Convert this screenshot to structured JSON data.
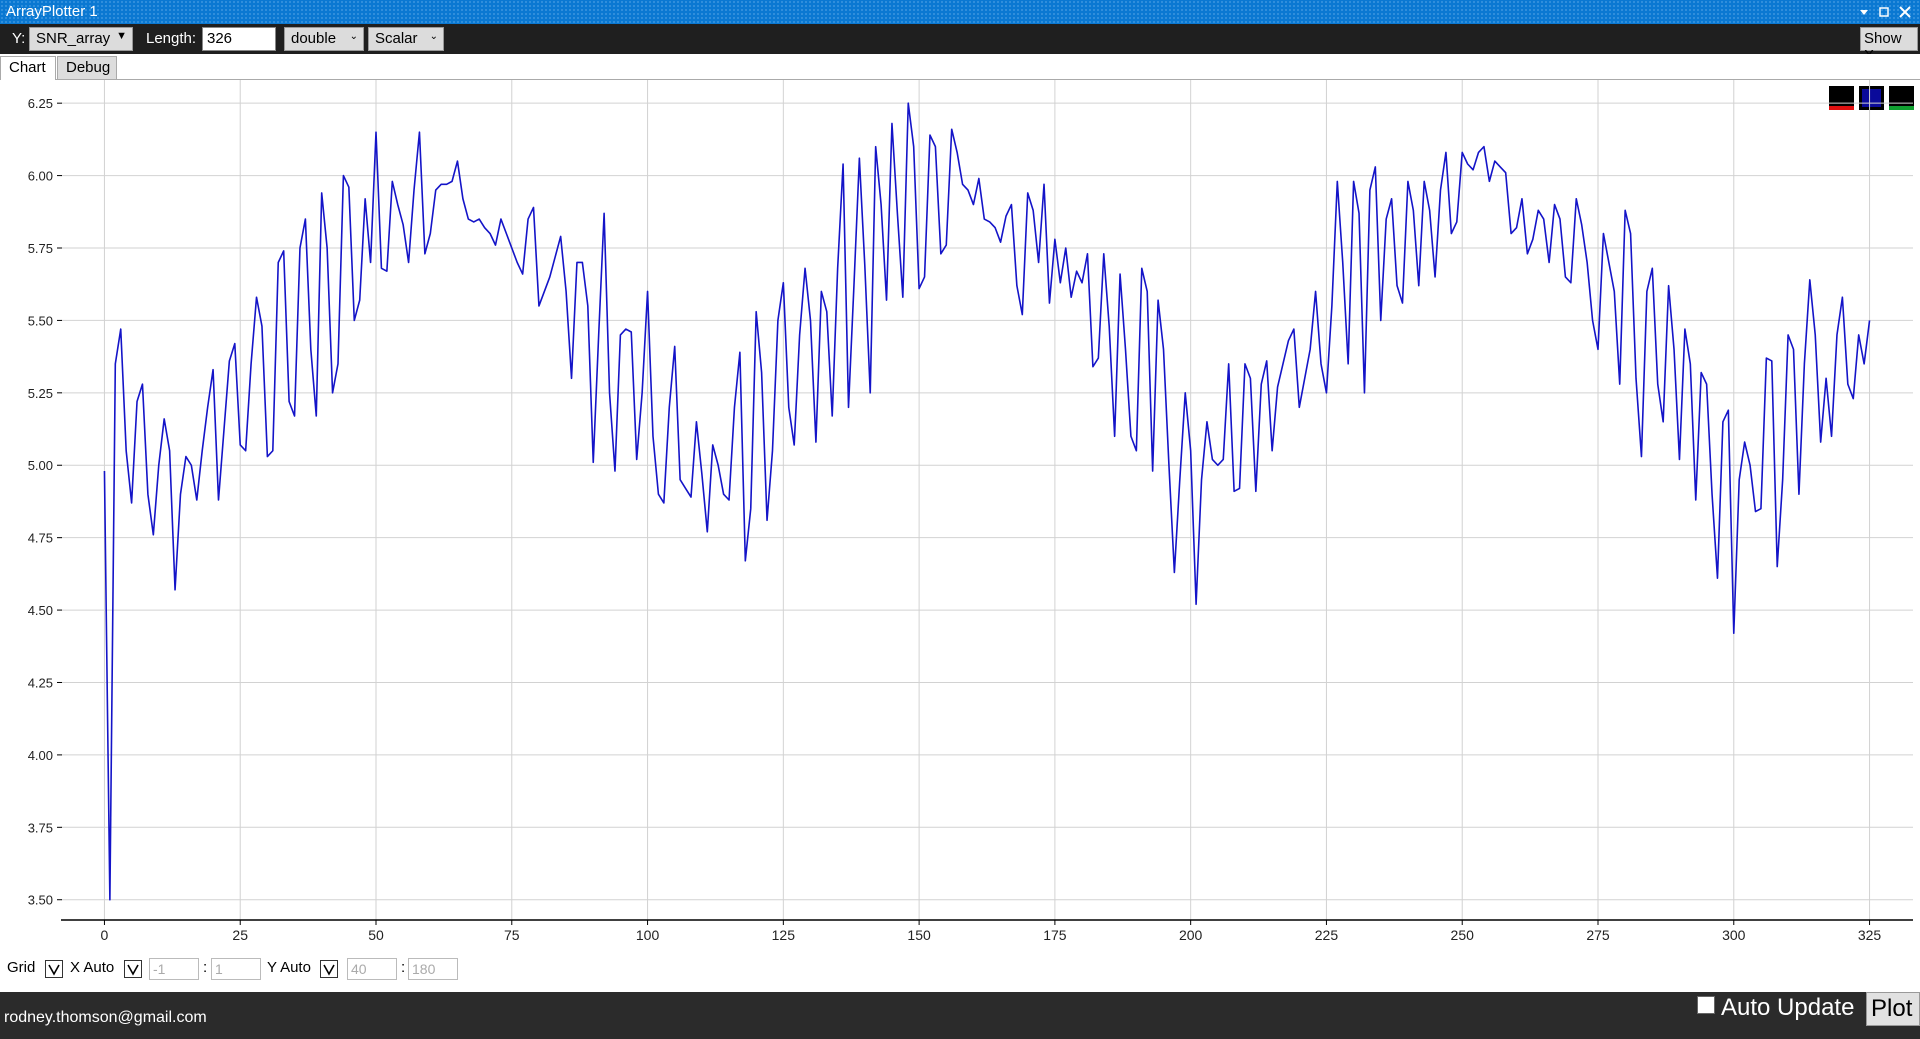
{
  "window": {
    "title": "ArrayPlotter 1",
    "toolbar": {
      "y_label": "Y:",
      "y_select": "SNR_array",
      "length_label": "Length:",
      "length_value": "326",
      "type_select": "double",
      "mode_select": "Scalar",
      "show_x": "Show X"
    },
    "tabs": [
      "Chart",
      "Debug"
    ],
    "controls": {
      "grid": "Grid",
      "x_auto": "X Auto",
      "x_min": "-1",
      "x_max": "1",
      "y_auto": "Y Auto",
      "y_min": "40",
      "y_max": "180",
      "separator": ":"
    },
    "footer": {
      "email": "rodney.thomson@gmail.com",
      "auto_update": "Auto Update",
      "plot": "Plot"
    }
  },
  "chart_data": {
    "type": "line",
    "grid": true,
    "xlim": [
      -8,
      333
    ],
    "ylim": [
      3.43,
      6.33
    ],
    "xticks": [
      0,
      25,
      50,
      75,
      100,
      125,
      150,
      175,
      200,
      225,
      250,
      275,
      300,
      325
    ],
    "yticks": [
      {
        "value": 3.5,
        "label": "3.50"
      },
      3.75,
      {
        "value": 4,
        "label": "4.00"
      },
      4.25,
      {
        "value": 4.5,
        "label": "4.50"
      },
      4.75,
      {
        "value": 5,
        "label": "5.00"
      },
      5.25,
      {
        "value": 5.5,
        "label": "5.50"
      },
      5.75,
      {
        "value": 6,
        "label": "6.00"
      },
      6.25
    ],
    "x": [
      0,
      1,
      2,
      3,
      4,
      5,
      6,
      7,
      8,
      9,
      10,
      11,
      12,
      13,
      14,
      15,
      16,
      17,
      18,
      19,
      20,
      21,
      22,
      23,
      24,
      25,
      26,
      27,
      28,
      29,
      30,
      31,
      32,
      33,
      34,
      35,
      36,
      37,
      38,
      39,
      40,
      41,
      42,
      43,
      44,
      45,
      46,
      47,
      48,
      49,
      50,
      51,
      52,
      53,
      54,
      55,
      56,
      57,
      58,
      59,
      60,
      61,
      62,
      63,
      64,
      65,
      66,
      67,
      68,
      69,
      70,
      71,
      72,
      73,
      74,
      75,
      76,
      77,
      78,
      79,
      80,
      81,
      82,
      83,
      84,
      85,
      86,
      87,
      88,
      89,
      90,
      91,
      92,
      93,
      94,
      95,
      96,
      97,
      98,
      99,
      100,
      101,
      102,
      103,
      104,
      105,
      106,
      107,
      108,
      109,
      110,
      111,
      112,
      113,
      114,
      115,
      116,
      117,
      118,
      119,
      120,
      121,
      122,
      123,
      124,
      125,
      126,
      127,
      128,
      129,
      130,
      131,
      132,
      133,
      134,
      135,
      136,
      137,
      138,
      139,
      140,
      141,
      142,
      143,
      144,
      145,
      146,
      147,
      148,
      149,
      150,
      151,
      152,
      153,
      154,
      155,
      156,
      157,
      158,
      159,
      160,
      161,
      162,
      163,
      164,
      165,
      166,
      167,
      168,
      169,
      170,
      171,
      172,
      173,
      174,
      175,
      176,
      177,
      178,
      179,
      180,
      181,
      182,
      183,
      184,
      185,
      186,
      187,
      188,
      189,
      190,
      191,
      192,
      193,
      194,
      195,
      196,
      197,
      198,
      199,
      200,
      201,
      202,
      203,
      204,
      205,
      206,
      207,
      208,
      209,
      210,
      211,
      212,
      213,
      214,
      215,
      216,
      217,
      218,
      219,
      220,
      221,
      222,
      223,
      224,
      225,
      226,
      227,
      228,
      229,
      230,
      231,
      232,
      233,
      234,
      235,
      236,
      237,
      238,
      239,
      240,
      241,
      242,
      243,
      244,
      245,
      246,
      247,
      248,
      249,
      250,
      251,
      252,
      253,
      254,
      255,
      256,
      257,
      258,
      259,
      260,
      261,
      262,
      263,
      264,
      265,
      266,
      267,
      268,
      269,
      270,
      271,
      272,
      273,
      274,
      275,
      276,
      277,
      278,
      279,
      280,
      281,
      282,
      283,
      284,
      285,
      286,
      287,
      288,
      289,
      290,
      291,
      292,
      293,
      294,
      295,
      296,
      297,
      298,
      299,
      300,
      301,
      302,
      303,
      304,
      305,
      306,
      307,
      308,
      309,
      310,
      311,
      312,
      313,
      314,
      315,
      316,
      317,
      318,
      319,
      320,
      321,
      322,
      323,
      324,
      325
    ],
    "series": [
      {
        "color": "#1414c8",
        "values": [
          4.98,
          3.5,
          5.35,
          5.47,
          5.05,
          4.87,
          5.22,
          5.28,
          4.9,
          4.76,
          5.0,
          5.16,
          5.05,
          4.57,
          4.9,
          5.03,
          5.0,
          4.88,
          5.05,
          5.2,
          5.33,
          4.88,
          5.12,
          5.36,
          5.42,
          5.07,
          5.05,
          5.35,
          5.58,
          5.48,
          5.03,
          5.05,
          5.7,
          5.74,
          5.22,
          5.17,
          5.75,
          5.85,
          5.4,
          5.17,
          5.94,
          5.75,
          5.25,
          5.35,
          6.0,
          5.96,
          5.5,
          5.57,
          5.92,
          5.7,
          6.15,
          5.68,
          5.67,
          5.98,
          5.9,
          5.83,
          5.7,
          5.95,
          6.15,
          5.73,
          5.8,
          5.95,
          5.97,
          5.97,
          5.98,
          6.05,
          5.92,
          5.85,
          5.84,
          5.85,
          5.82,
          5.8,
          5.76,
          5.85,
          5.8,
          5.75,
          5.7,
          5.66,
          5.85,
          5.89,
          5.55,
          5.6,
          5.65,
          5.72,
          5.79,
          5.6,
          5.3,
          5.7,
          5.7,
          5.55,
          5.01,
          5.45,
          5.87,
          5.25,
          4.98,
          5.45,
          5.47,
          5.46,
          5.02,
          5.25,
          5.6,
          5.1,
          4.9,
          4.87,
          5.2,
          5.41,
          4.95,
          4.92,
          4.89,
          5.15,
          4.97,
          4.77,
          5.07,
          5.0,
          4.9,
          4.88,
          5.2,
          5.39,
          4.67,
          4.85,
          5.53,
          5.32,
          4.81,
          5.05,
          5.5,
          5.63,
          5.2,
          5.07,
          5.45,
          5.68,
          5.5,
          5.08,
          5.6,
          5.53,
          5.17,
          5.68,
          6.04,
          5.2,
          5.62,
          6.06,
          5.69,
          5.25,
          6.1,
          5.9,
          5.57,
          6.18,
          5.87,
          5.58,
          6.25,
          6.1,
          5.61,
          5.65,
          6.14,
          6.1,
          5.73,
          5.76,
          6.16,
          6.08,
          5.97,
          5.95,
          5.9,
          5.99,
          5.85,
          5.84,
          5.82,
          5.77,
          5.86,
          5.9,
          5.62,
          5.52,
          5.94,
          5.88,
          5.7,
          5.97,
          5.56,
          5.78,
          5.63,
          5.75,
          5.58,
          5.67,
          5.63,
          5.73,
          5.34,
          5.37,
          5.73,
          5.48,
          5.1,
          5.66,
          5.4,
          5.1,
          5.05,
          5.68,
          5.6,
          4.98,
          5.57,
          5.4,
          5.0,
          4.63,
          4.95,
          5.25,
          5.05,
          4.52,
          4.95,
          5.15,
          5.02,
          5.0,
          5.02,
          5.35,
          4.91,
          4.92,
          5.35,
          5.3,
          4.91,
          5.28,
          5.36,
          5.05,
          5.27,
          5.35,
          5.43,
          5.47,
          5.2,
          5.3,
          5.4,
          5.6,
          5.35,
          5.25,
          5.55,
          5.98,
          5.7,
          5.35,
          5.98,
          5.87,
          5.25,
          5.95,
          6.03,
          5.5,
          5.85,
          5.92,
          5.62,
          5.56,
          5.98,
          5.88,
          5.62,
          5.98,
          5.88,
          5.65,
          5.95,
          6.08,
          5.8,
          5.84,
          6.08,
          6.04,
          6.02,
          6.08,
          6.1,
          5.98,
          6.05,
          6.03,
          6.01,
          5.8,
          5.82,
          5.92,
          5.73,
          5.78,
          5.88,
          5.85,
          5.7,
          5.9,
          5.85,
          5.65,
          5.63,
          5.92,
          5.83,
          5.7,
          5.5,
          5.4,
          5.8,
          5.7,
          5.6,
          5.28,
          5.88,
          5.8,
          5.3,
          5.03,
          5.6,
          5.68,
          5.28,
          5.15,
          5.62,
          5.4,
          5.02,
          5.47,
          5.35,
          4.88,
          5.32,
          5.28,
          4.9,
          4.61,
          5.15,
          5.19,
          4.42,
          4.95,
          5.08,
          5.0,
          4.84,
          4.85,
          5.37,
          5.36,
          4.65,
          4.95,
          5.45,
          5.4,
          4.9,
          5.35,
          5.64,
          5.45,
          5.08,
          5.3,
          5.1,
          5.45,
          5.58,
          5.28,
          5.23,
          5.45,
          5.35,
          5.5
        ]
      }
    ]
  }
}
